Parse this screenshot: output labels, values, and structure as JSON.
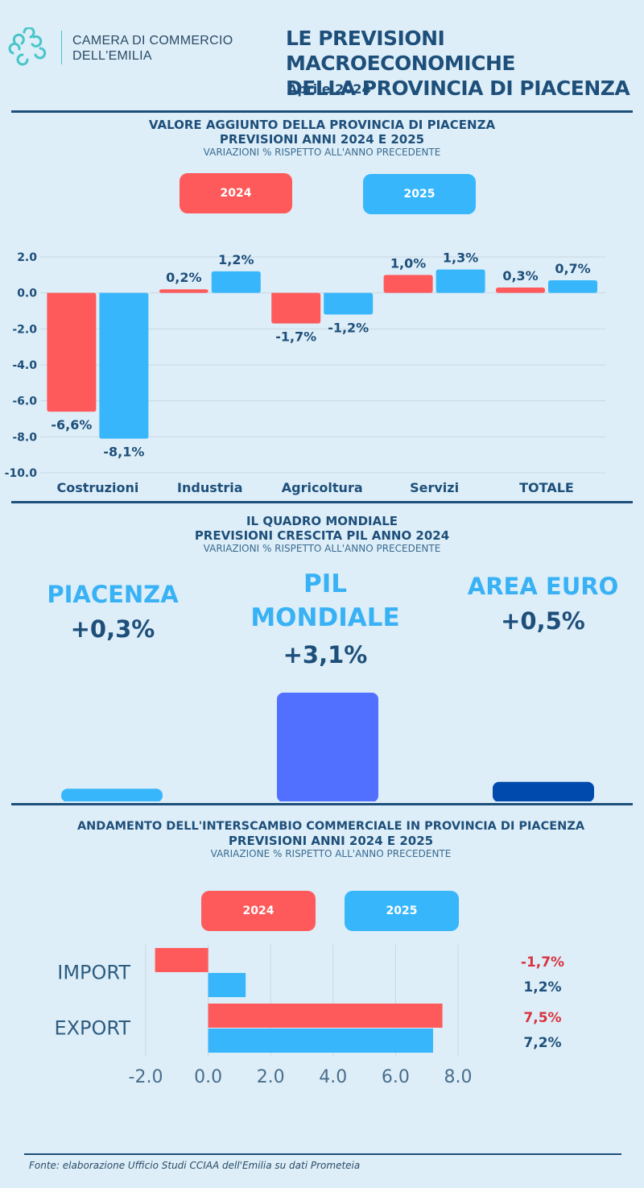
{
  "header": {
    "org_line1": "CAMERA DI COMMERCIO",
    "org_line2": "DELL'EMILIA",
    "title_line1": "LE PREVISIONI MACROECONOMICHE",
    "title_line2": "DELLA PROVINCIA DI PIACENZA",
    "date": "Aprile 2024",
    "logo_icon": "camera-commercio-logo-icon"
  },
  "colors": {
    "series_2024": "#fe5a5b",
    "series_2025": "#38b6fc",
    "text": "#1e4f7a",
    "world_bar": "#5170ff",
    "euro_bar": "#004aad"
  },
  "section1": {
    "title_line1": "VALORE AGGIUNTO DELLA PROVINCIA DI PIACENZA",
    "title_line2": "PREVISIONI ANNI 2024 E 2025",
    "subtitle": "VARIAZIONI % RISPETTO ALL'ANNO PRECEDENTE",
    "legend_2024": "2024",
    "legend_2025": "2025"
  },
  "section2": {
    "title_line1": "IL QUADRO MONDIALE",
    "title_line2": "PREVISIONI CRESCITA PIL ANNO 2024",
    "subtitle": "VARIAZIONI % RISPETTO ALL'ANNO PRECEDENTE",
    "piacenza_name": "PIACENZA",
    "piacenza_value": "+0,3%",
    "world_name_line1": "PIL",
    "world_name_line2": "MONDIALE",
    "world_value": "+3,1%",
    "euro_name": "AREA EURO",
    "euro_value": "+0,5%"
  },
  "section3": {
    "title_line1": "ANDAMENTO DELL'INTERSCAMBIO COMMERCIALE IN PROVINCIA DI PIACENZA",
    "title_line2": "PREVISIONI ANNI 2024 E 2025",
    "subtitle": "VARIAZIONE % RISPETTO ALL'ANNO PRECEDENTE",
    "legend_2024": "2024",
    "legend_2025": "2025"
  },
  "footer": {
    "source": "Fonte: elaborazione Ufficio Studi CCIAA dell'Emilia su dati Prometeia"
  },
  "chart_data": [
    {
      "type": "bar",
      "categories": [
        "Costruzioni",
        "Industria",
        "Agricoltura",
        "Servizi",
        "TOTALE"
      ],
      "series": [
        {
          "name": "2024",
          "values": [
            -6.6,
            0.2,
            -1.7,
            1.0,
            0.3
          ],
          "labels": [
            "-6,6%",
            "0,2%",
            "-1,7%",
            "1,0%",
            "0,3%"
          ]
        },
        {
          "name": "2025",
          "values": [
            -8.1,
            1.2,
            -1.2,
            1.3,
            0.7
          ],
          "labels": [
            "-8,1%",
            "1,2%",
            "-1,2%",
            "1,3%",
            "0,7%"
          ]
        }
      ],
      "ylim": [
        -10,
        2
      ],
      "yticks": [
        "2.0",
        "0.0",
        "-2.0",
        "-4.0",
        "-6.0",
        "-8.0",
        "-10.0"
      ],
      "grid": true
    },
    {
      "type": "bar",
      "categories": [
        "PIACENZA",
        "PIL MONDIALE",
        "AREA EURO"
      ],
      "values": [
        0.3,
        3.1,
        0.5
      ]
    },
    {
      "type": "bar",
      "orientation": "horizontal",
      "categories": [
        "IMPORT",
        "EXPORT"
      ],
      "series": [
        {
          "name": "2024",
          "values": [
            -1.7,
            7.5
          ],
          "labels": [
            "-1,7%",
            "7,5%"
          ]
        },
        {
          "name": "2025",
          "values": [
            1.2,
            7.2
          ],
          "labels": [
            "1,2%",
            "7,2%"
          ]
        }
      ],
      "xlim": [
        -2,
        8
      ],
      "xticks": [
        "-2.0",
        "0.0",
        "2.0",
        "4.0",
        "6.0",
        "8.0"
      ],
      "grid": true
    }
  ]
}
